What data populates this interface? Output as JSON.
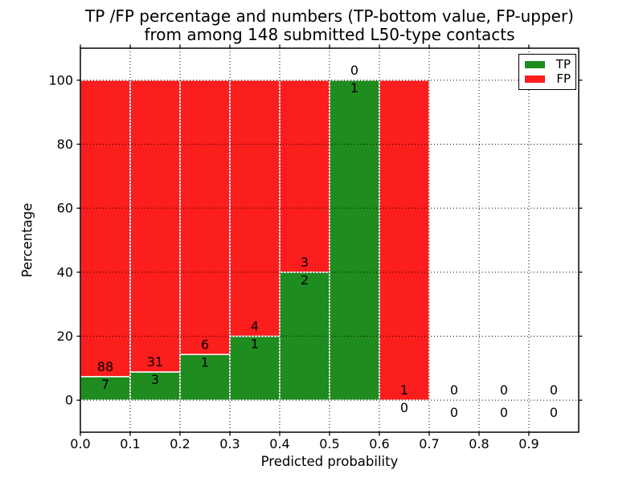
{
  "chart_data": {
    "type": "bar",
    "stacked": true,
    "title_line1": "TP /FP percentage and numbers (TP-bottom value, FP-upper)",
    "title_line2": "from among 148 submitted L50-type contacts",
    "xlabel": "Predicted probability",
    "ylabel": "Percentage",
    "x_tick_labels": [
      "0.0",
      "0.1",
      "0.2",
      "0.3",
      "0.4",
      "0.5",
      "0.6",
      "0.7",
      "0.8",
      "0.9"
    ],
    "y_tick_values": [
      0,
      20,
      40,
      60,
      80,
      100
    ],
    "xlim": [
      0.0,
      1.0
    ],
    "ylim": [
      -10,
      110
    ],
    "grid": "dotted",
    "legend_position": "upper-right",
    "series": [
      {
        "name": "TP",
        "color": "#1e8c1e"
      },
      {
        "name": "FP",
        "color": "#fc1d1d"
      }
    ],
    "bins": [
      {
        "x0": 0.0,
        "x1": 0.1,
        "tp": 7,
        "fp": 88
      },
      {
        "x0": 0.1,
        "x1": 0.2,
        "tp": 3,
        "fp": 31
      },
      {
        "x0": 0.2,
        "x1": 0.3,
        "tp": 1,
        "fp": 6
      },
      {
        "x0": 0.3,
        "x1": 0.4,
        "tp": 1,
        "fp": 4
      },
      {
        "x0": 0.4,
        "x1": 0.5,
        "tp": 2,
        "fp": 3
      },
      {
        "x0": 0.5,
        "x1": 0.6,
        "tp": 1,
        "fp": 0
      },
      {
        "x0": 0.6,
        "x1": 0.7,
        "tp": 0,
        "fp": 1
      },
      {
        "x0": 0.7,
        "x1": 0.8,
        "tp": 0,
        "fp": 0
      },
      {
        "x0": 0.8,
        "x1": 0.9,
        "tp": 0,
        "fp": 0
      },
      {
        "x0": 0.9,
        "x1": 1.0,
        "tp": 0,
        "fp": 0
      }
    ]
  }
}
